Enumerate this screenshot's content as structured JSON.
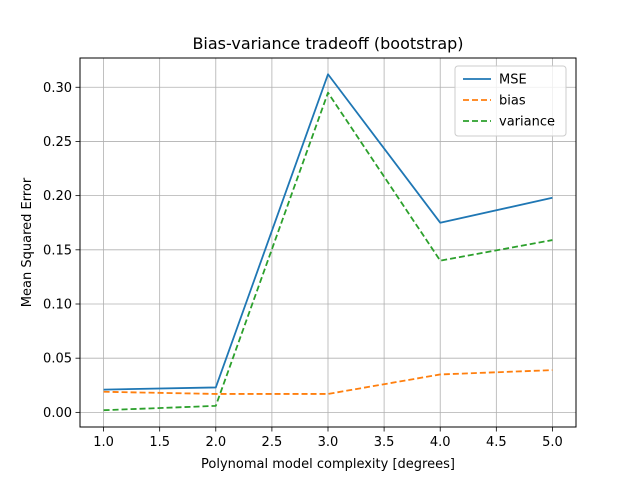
{
  "chart_data": {
    "type": "line",
    "title": "Bias-variance tradeoff (bootstrap)",
    "xlabel": "Polynomal model complexity [degrees]",
    "ylabel": "Mean Squared Error",
    "x": [
      1.0,
      2.0,
      3.0,
      4.0,
      5.0
    ],
    "xlim": [
      0.79,
      5.21
    ],
    "ylim": [
      -0.0135,
      0.327
    ],
    "xticks": [
      "1.0",
      "1.5",
      "2.0",
      "2.5",
      "3.0",
      "3.5",
      "4.0",
      "4.5",
      "5.0"
    ],
    "yticks": [
      "0.00",
      "0.05",
      "0.10",
      "0.15",
      "0.20",
      "0.25",
      "0.30"
    ],
    "grid": true,
    "legend_position": "top-right",
    "series": [
      {
        "name": "MSE",
        "values": [
          0.021,
          0.023,
          0.312,
          0.175,
          0.198
        ],
        "color": "#1f77b4",
        "style": "solid"
      },
      {
        "name": "bias",
        "values": [
          0.019,
          0.017,
          0.017,
          0.035,
          0.039
        ],
        "color": "#ff7f0e",
        "style": "dashed"
      },
      {
        "name": "variance",
        "values": [
          0.002,
          0.006,
          0.295,
          0.14,
          0.159
        ],
        "color": "#2ca02c",
        "style": "dashed"
      }
    ]
  }
}
